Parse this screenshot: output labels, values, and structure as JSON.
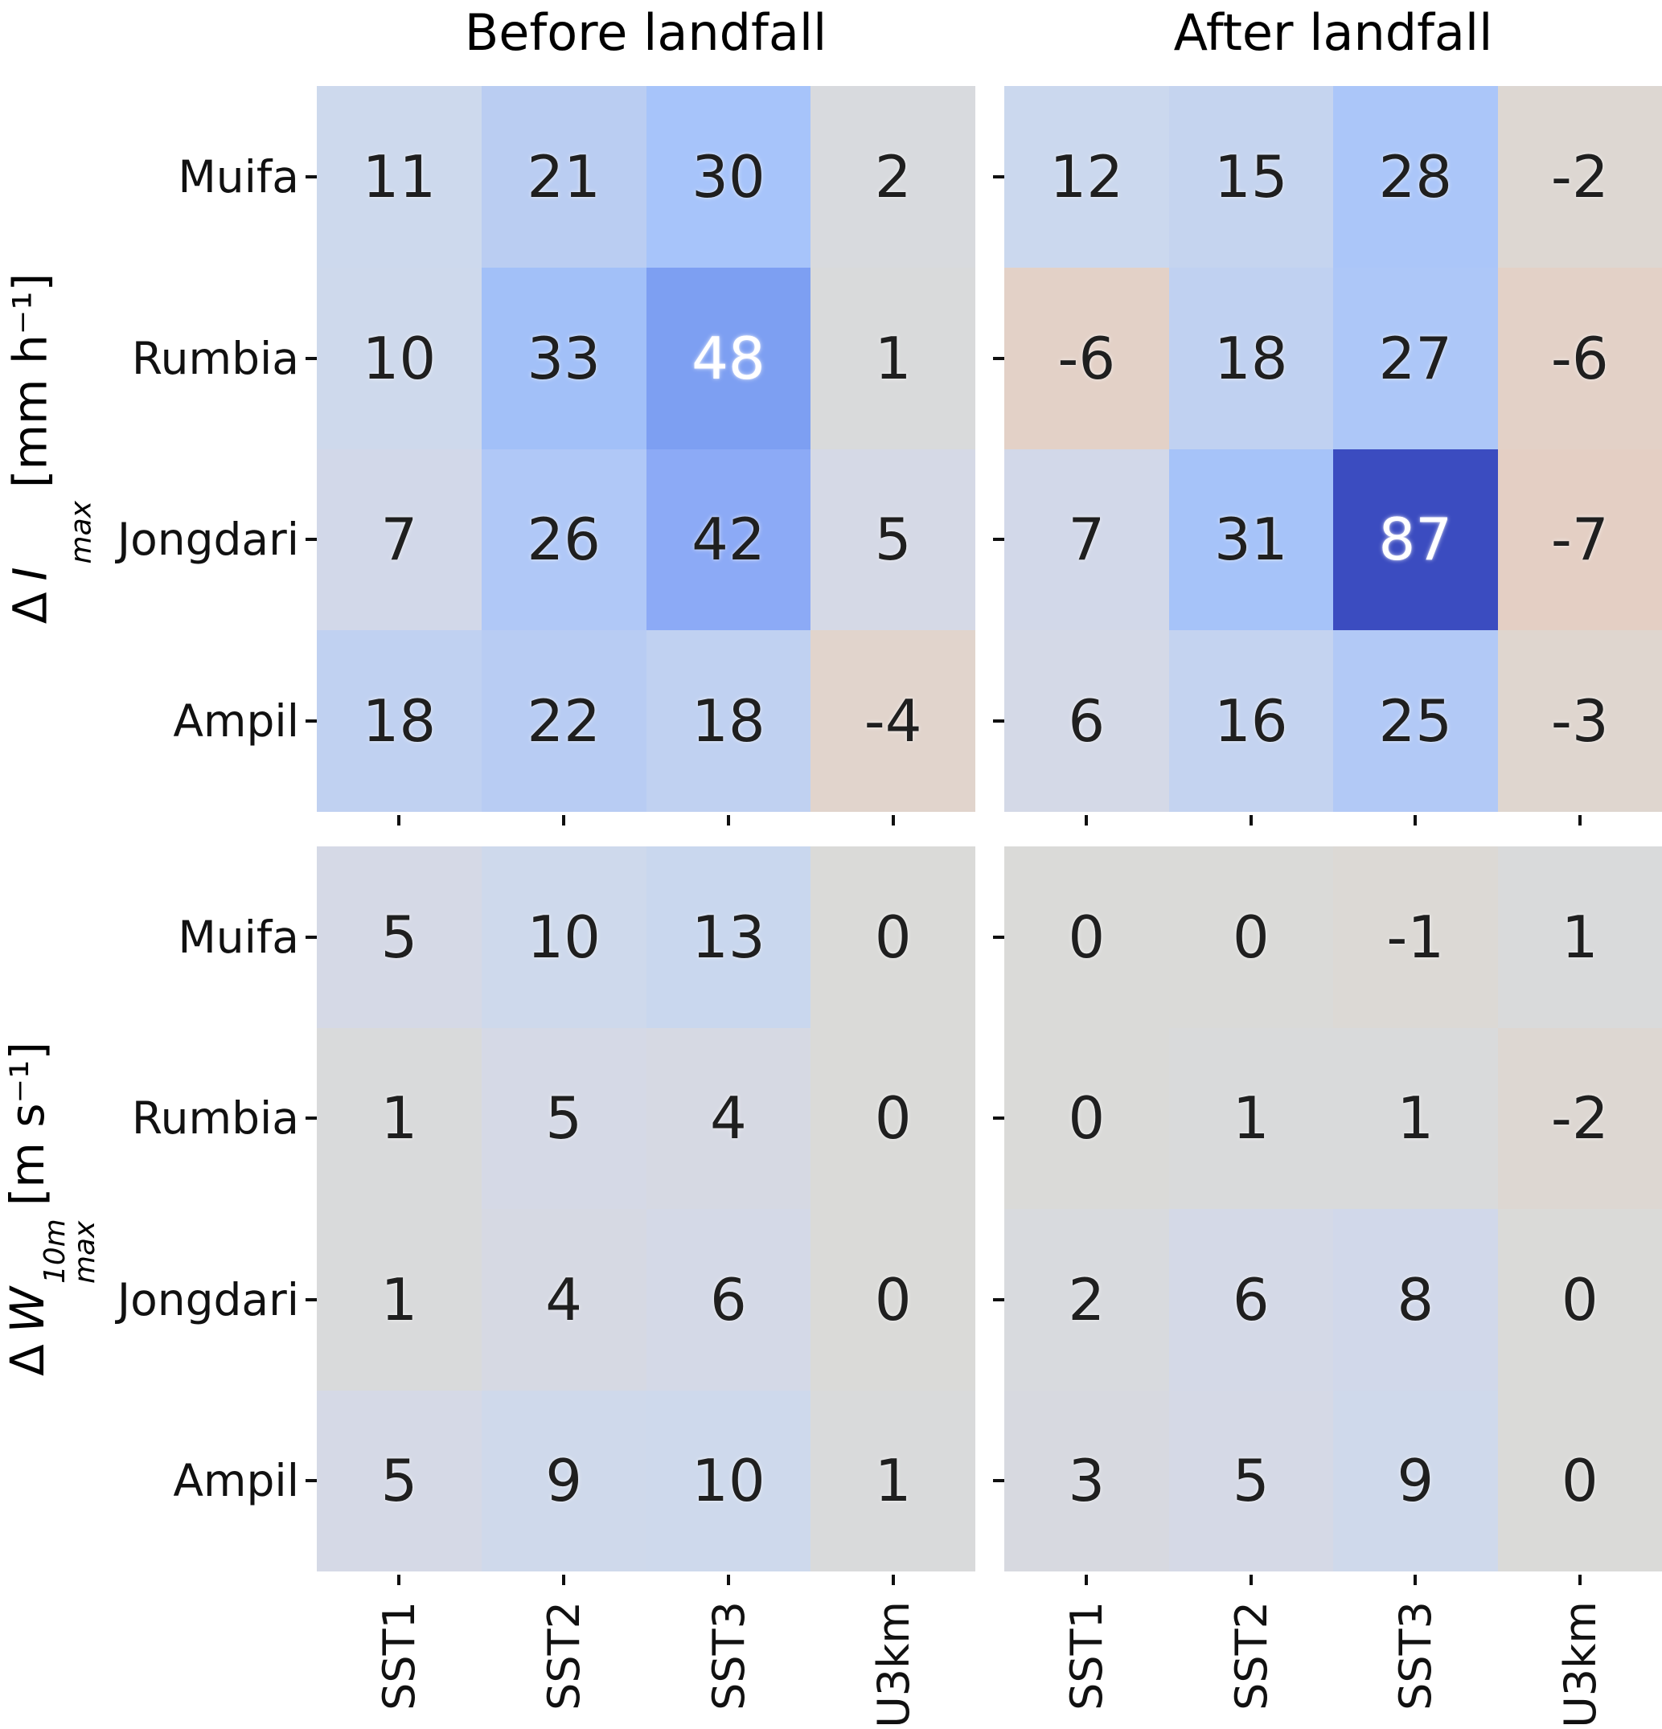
{
  "figure": {
    "column_titles": [
      "Before landfall",
      "After landfall"
    ],
    "metrics": [
      {
        "delta": "Δ",
        "symbol": "I",
        "sup": "",
        "sub": "max",
        "unit": "[mm h⁻¹]"
      },
      {
        "delta": "Δ",
        "symbol": "W",
        "sup": "10m",
        "sub": "max",
        "unit": "[m s⁻¹]"
      }
    ]
  },
  "chart_data": {
    "type": "heatmap",
    "title": "",
    "column_titles": [
      "Before landfall",
      "After landfall"
    ],
    "row_metric_labels": [
      "Δ I_max [mm h⁻¹]",
      "Δ W_max^10m [m s⁻¹]"
    ],
    "storms": [
      "Muifa",
      "Rumbia",
      "Jongdari",
      "Ampil"
    ],
    "experiments": [
      "SST1",
      "SST2",
      "SST3",
      "U3km"
    ],
    "panels": [
      {
        "metric": "Δ I_max [mm h⁻¹]",
        "column": "Before landfall",
        "values": [
          [
            11,
            21,
            30,
            2
          ],
          [
            10,
            33,
            48,
            1
          ],
          [
            7,
            26,
            42,
            5
          ],
          [
            18,
            22,
            18,
            -4
          ]
        ]
      },
      {
        "metric": "Δ I_max [mm h⁻¹]",
        "column": "After landfall",
        "values": [
          [
            12,
            15,
            28,
            -2
          ],
          [
            -6,
            18,
            27,
            -6
          ],
          [
            7,
            31,
            87,
            -7
          ],
          [
            6,
            16,
            25,
            -3
          ]
        ]
      },
      {
        "metric": "Δ W_max^10m [m s⁻¹]",
        "column": "Before landfall",
        "values": [
          [
            5,
            10,
            13,
            0
          ],
          [
            1,
            5,
            4,
            0
          ],
          [
            1,
            4,
            6,
            0
          ],
          [
            5,
            9,
            10,
            1
          ]
        ]
      },
      {
        "metric": "Δ W_max^10m [m s⁻¹]",
        "column": "After landfall",
        "values": [
          [
            0,
            0,
            -1,
            1
          ],
          [
            0,
            1,
            1,
            -2
          ],
          [
            2,
            6,
            8,
            0
          ],
          [
            3,
            5,
            9,
            0
          ]
        ]
      }
    ],
    "colormap": {
      "name": "coolwarm (blue = positive, tan = negative)",
      "center": 0,
      "vmin": -87,
      "vmax": 87,
      "max_color": "#3b4cc0",
      "center_color": "#dadad8",
      "min_side_color": "#e4cfc4"
    },
    "annotation_text_colors": {
      "dark": "#1f1f1f",
      "light": "#ffffff"
    },
    "legend": "none",
    "grid": "off"
  }
}
